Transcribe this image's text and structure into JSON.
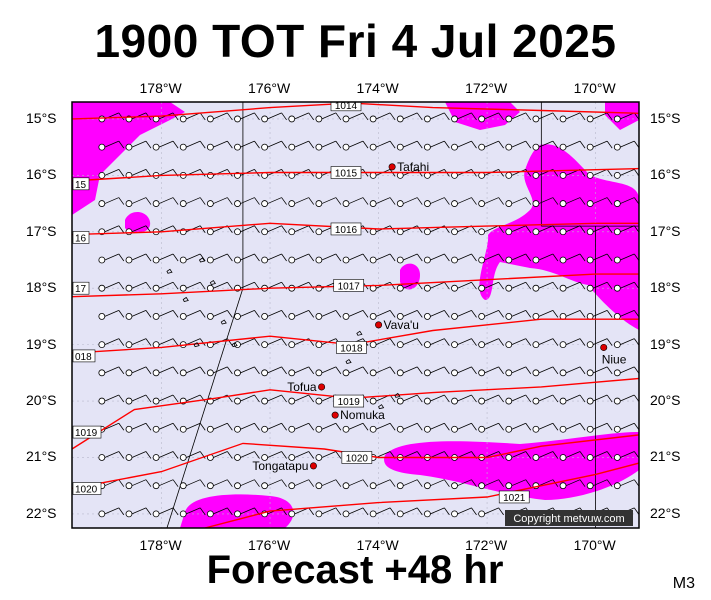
{
  "title": "1900 TOT Fri 4 Jul 2025",
  "subtitle": "Forecast +48 hr",
  "model": "M3",
  "copyright": "Copyright metvuw.com",
  "colors": {
    "background": "#e4e4f6",
    "rain": "#ff00ff",
    "isobar": "#ff0000",
    "grid": "#000000",
    "island_marker": "#dd0000"
  },
  "map": {
    "lon_range": [
      -179.65,
      -169.2
    ],
    "lat_range": [
      -22.25,
      -14.7
    ],
    "lon_ticks": [
      {
        "label": "178°W",
        "value": -178
      },
      {
        "label": "176°W",
        "value": -176
      },
      {
        "label": "174°W",
        "value": -174
      },
      {
        "label": "172°W",
        "value": -172
      },
      {
        "label": "170°W",
        "value": -170
      }
    ],
    "lat_ticks": [
      {
        "label": "15°S",
        "value": -15
      },
      {
        "label": "16°S",
        "value": -16
      },
      {
        "label": "17°S",
        "value": -17
      },
      {
        "label": "18°S",
        "value": -18
      },
      {
        "label": "19°S",
        "value": -19
      },
      {
        "label": "20°S",
        "value": -20
      },
      {
        "label": "21°S",
        "value": -21
      },
      {
        "label": "22°S",
        "value": -22
      }
    ],
    "places": [
      {
        "name": "Tafahi",
        "lon": -173.75,
        "lat": -15.85
      },
      {
        "name": "Vava'u",
        "lon": -174.0,
        "lat": -18.65
      },
      {
        "name": "Niue",
        "lon": -169.85,
        "lat": -19.05
      },
      {
        "name": "Tofua",
        "lon": -175.05,
        "lat": -19.75
      },
      {
        "name": "Nomuka",
        "lon": -174.8,
        "lat": -20.25
      },
      {
        "name": "Tongatapu",
        "lon": -175.2,
        "lat": -21.15
      }
    ],
    "isobars": [
      {
        "label": "1014",
        "label_lon": -174.6,
        "label_lat": -14.75,
        "points": [
          [
            -179.65,
            -15.0
          ],
          [
            -178,
            -14.95
          ],
          [
            -176,
            -14.8
          ],
          [
            -174.5,
            -14.72
          ],
          [
            -173,
            -14.8
          ],
          [
            -171,
            -14.85
          ],
          [
            -169.2,
            -14.9
          ]
        ]
      },
      {
        "label": "1015",
        "label_lon": -174.6,
        "label_lat": -15.95,
        "points": [
          [
            -179.65,
            -16.1
          ],
          [
            -178,
            -16.0
          ],
          [
            -176,
            -15.95
          ],
          [
            -174,
            -15.95
          ],
          [
            -172,
            -15.95
          ],
          [
            -170,
            -15.9
          ],
          [
            -169.2,
            -15.88
          ]
        ]
      },
      {
        "label": "1016",
        "label_lon": -174.6,
        "label_lat": -16.95,
        "points": [
          [
            -179.65,
            -17.05
          ],
          [
            -178,
            -17.0
          ],
          [
            -176,
            -16.85
          ],
          [
            -174,
            -16.95
          ],
          [
            -172,
            -16.9
          ],
          [
            -170,
            -16.85
          ],
          [
            -169.2,
            -16.85
          ]
        ]
      },
      {
        "label": "1017",
        "label_lon": -174.55,
        "label_lat": -17.95,
        "points": [
          [
            -179.65,
            -18.15
          ],
          [
            -178,
            -18.1
          ],
          [
            -176,
            -18.0
          ],
          [
            -174,
            -17.95
          ],
          [
            -172,
            -17.85
          ],
          [
            -170,
            -17.75
          ],
          [
            -169.2,
            -17.75
          ]
        ]
      },
      {
        "label": "1018",
        "label_lon": -174.5,
        "label_lat": -19.05,
        "points": [
          [
            -179.65,
            -19.15
          ],
          [
            -178,
            -19.05
          ],
          [
            -176,
            -18.85
          ],
          [
            -174.5,
            -19.0
          ],
          [
            -173,
            -18.75
          ],
          [
            -171,
            -18.55
          ],
          [
            -169.2,
            -18.55
          ]
        ]
      },
      {
        "label": "1019",
        "label_lon": -174.55,
        "label_lat": -20.0,
        "points": [
          [
            -179.65,
            -20.85
          ],
          [
            -178.5,
            -20.15
          ],
          [
            -177,
            -19.95
          ],
          [
            -176,
            -19.8
          ],
          [
            -174.5,
            -19.95
          ],
          [
            -173,
            -19.85
          ],
          [
            -171,
            -19.75
          ],
          [
            -169.2,
            -19.6
          ]
        ]
      },
      {
        "label": "1020",
        "label_lon": -174.4,
        "label_lat": -21.0,
        "points": [
          [
            -179.65,
            -21.55
          ],
          [
            -178,
            -21.25
          ],
          [
            -176.5,
            -20.75
          ],
          [
            -175,
            -20.85
          ],
          [
            -174,
            -21.0
          ],
          [
            -172,
            -21.0
          ],
          [
            -171,
            -20.8
          ],
          [
            -169.2,
            -20.6
          ]
        ]
      },
      {
        "label": "1021",
        "label_lon": -171.5,
        "label_lat": -21.7,
        "points": [
          [
            -177.2,
            -22.25
          ],
          [
            -176,
            -21.95
          ],
          [
            -174,
            -21.8
          ],
          [
            -172,
            -21.7
          ],
          [
            -170,
            -21.3
          ],
          [
            -169.2,
            -21.1
          ]
        ]
      }
    ],
    "edge_labels": [
      {
        "label": "15",
        "lat": -16.15
      },
      {
        "label": "16",
        "lat": -17.1
      },
      {
        "label": "17",
        "lat": -18.0
      },
      {
        "label": "018",
        "lat": -19.2
      },
      {
        "label": "1019",
        "lat": -20.55
      },
      {
        "label": "1020",
        "lat": -21.55
      }
    ]
  }
}
